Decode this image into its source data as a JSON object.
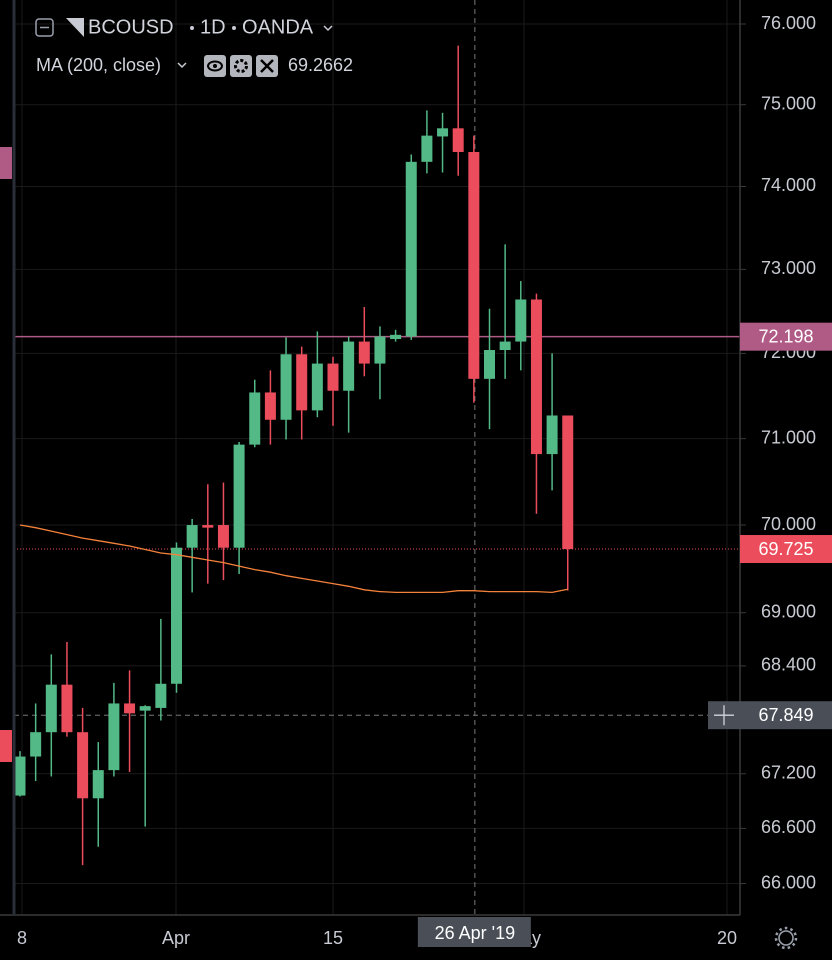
{
  "chart_data": {
    "type": "candlestick",
    "symbol": "BCOUSD",
    "interval": "1D",
    "exchange": "OANDA",
    "indicator": "MA (200, close)",
    "log": true,
    "grid": true,
    "up_color": "#53b987",
    "down_color": "#eb4d5c",
    "ylim": [
      65.66,
      76.3
    ],
    "yticks": [
      {
        "value": 66,
        "label": "66.000"
      },
      {
        "value": 66.6,
        "label": "66.600"
      },
      {
        "value": 67.2,
        "label": "67.200"
      },
      {
        "value": 68.4,
        "label": "68.400"
      },
      {
        "value": 69,
        "label": "69.000"
      },
      {
        "value": 70,
        "label": "70.000"
      },
      {
        "value": 71,
        "label": "71.000"
      },
      {
        "value": 72,
        "label": "72.000"
      },
      {
        "value": 73,
        "label": "73.000"
      },
      {
        "value": 74,
        "label": "74.000"
      },
      {
        "value": 75,
        "label": "75.000"
      },
      {
        "value": 76,
        "label": "76.000"
      }
    ],
    "xtick_labels": [
      "8",
      "Apr",
      "15",
      "May",
      "20"
    ],
    "open": [
      66.96,
      67.39,
      67.66,
      68.19,
      67.66,
      66.93,
      67.24,
      67.98,
      67.9,
      67.93,
      68.2,
      69.74,
      70.0,
      70.0,
      69.74,
      70.93,
      71.54,
      71.22,
      71.99,
      71.33,
      71.88,
      71.56,
      72.14,
      71.88,
      72.17,
      72.2,
      74.3,
      74.61,
      74.71,
      74.42,
      71.7,
      72.04,
      72.14,
      72.64,
      70.82,
      71.27
    ],
    "high": [
      67.45,
      67.98,
      68.53,
      68.67,
      67.93,
      67.55,
      68.21,
      68.35,
      67.96,
      68.93,
      69.8,
      70.07,
      70.47,
      70.49,
      70.96,
      71.69,
      71.8,
      72.19,
      72.08,
      72.26,
      71.96,
      72.2,
      72.55,
      72.32,
      72.28,
      74.39,
      74.93,
      74.9,
      75.73,
      74.62,
      72.53,
      73.3,
      72.86,
      72.71,
      72.0,
      71.27
    ],
    "low": [
      66.95,
      67.12,
      67.17,
      67.61,
      66.2,
      66.4,
      67.17,
      67.22,
      66.62,
      67.79,
      68.1,
      69.23,
      69.33,
      69.37,
      69.44,
      70.9,
      70.93,
      70.99,
      70.99,
      71.25,
      71.15,
      71.07,
      71.73,
      71.46,
      72.14,
      72.16,
      74.16,
      74.17,
      74.13,
      71.42,
      71.11,
      71.7,
      71.8,
      70.13,
      70.4,
      69.25
    ],
    "close": [
      67.39,
      67.66,
      68.19,
      67.66,
      66.93,
      67.24,
      67.98,
      67.87,
      67.95,
      68.2,
      69.74,
      70.0,
      69.97,
      69.74,
      70.93,
      71.54,
      71.22,
      71.99,
      71.33,
      71.88,
      71.56,
      72.14,
      71.88,
      72.2,
      72.22,
      74.3,
      74.62,
      74.71,
      74.42,
      71.7,
      72.04,
      72.14,
      72.64,
      70.82,
      71.27,
      69.725
    ],
    "ma": {
      "name": "MA (200, close)",
      "color": "#f5823a",
      "values": [
        70.0,
        69.97,
        69.93,
        69.89,
        69.85,
        69.82,
        69.79,
        69.76,
        69.72,
        69.68,
        69.66,
        69.63,
        69.6,
        69.57,
        69.53,
        69.49,
        69.46,
        69.42,
        69.39,
        69.36,
        69.33,
        69.3,
        69.26,
        69.24,
        69.23,
        69.23,
        69.23,
        69.23,
        69.25,
        69.25,
        69.24,
        69.24,
        69.24,
        69.24,
        69.23,
        69.2662
      ]
    },
    "hline": {
      "value": 72.198,
      "color": "#b05a86"
    },
    "last_price": {
      "value": 69.725,
      "color": "#eb4d5c"
    },
    "crosshair": {
      "price": 67.849,
      "date": "26 Apr '19"
    }
  }
}
